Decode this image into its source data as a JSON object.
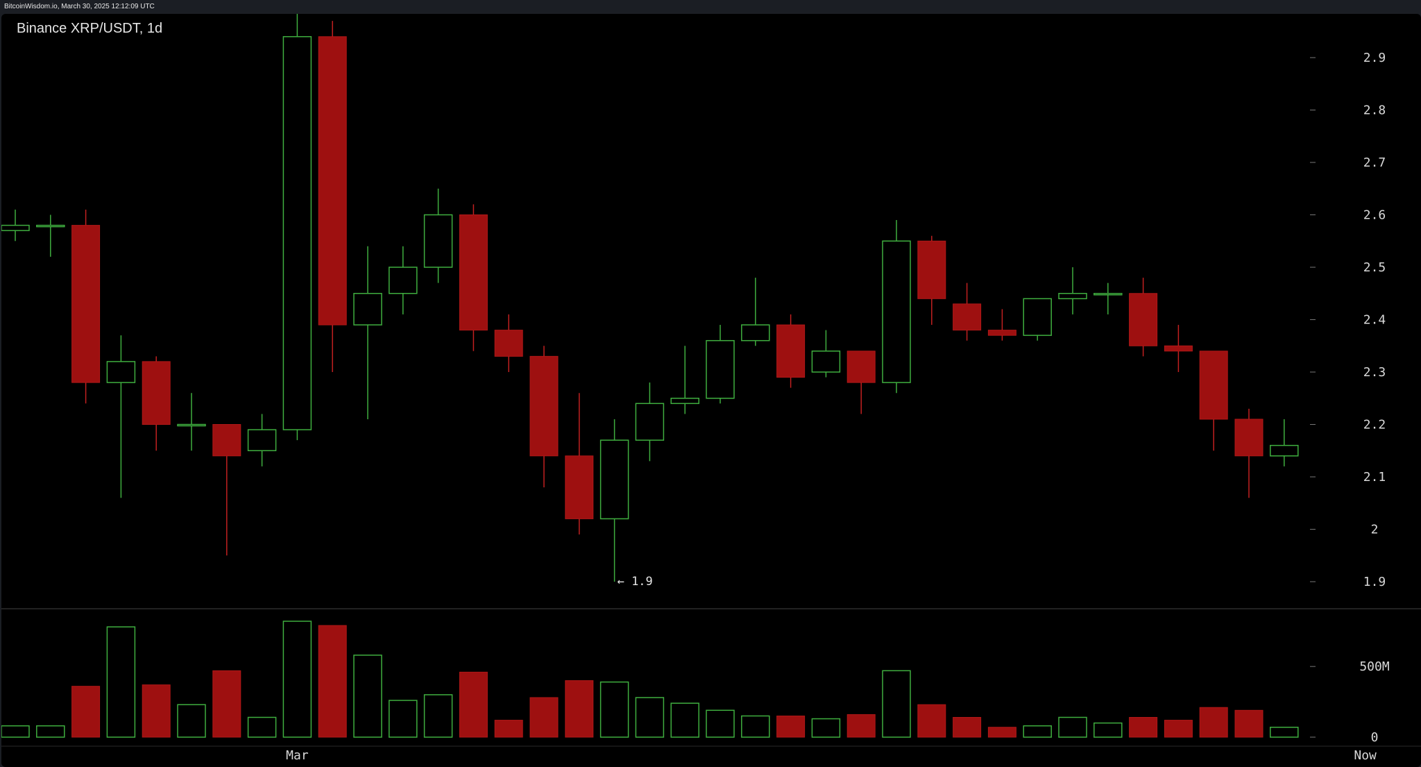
{
  "header": {
    "timestamp": "BitcoinWisdom.io, March 30, 2025 12:12:09 UTC"
  },
  "chart_data": {
    "type": "candlestick",
    "title": "Binance XRP/USDT, 1d",
    "ylim": [
      1.88,
      2.99
    ],
    "yticks": [
      1.9,
      2.0,
      2.1,
      2.2,
      2.3,
      2.4,
      2.5,
      2.6,
      2.7,
      2.8,
      2.9
    ],
    "ytick_labels": [
      "1.9",
      "2",
      "2.1",
      "2.2",
      "2.3",
      "2.4",
      "2.5",
      "2.6",
      "2.7",
      "2.8",
      "2.9"
    ],
    "volume_ticks": [
      0,
      500000000
    ],
    "volume_tick_labels": [
      "0",
      "500M"
    ],
    "volume_max": 820000000,
    "x_labels": [
      {
        "label": "Mar",
        "index": 8
      },
      {
        "label": "Now",
        "index": 38.3
      }
    ],
    "low_annotation": {
      "text": "← 1.9",
      "index": 17,
      "value": 1.9
    },
    "up_color": "#3fae3f",
    "down_color": "#9e1010",
    "candles": [
      {
        "o": 2.57,
        "h": 2.61,
        "l": 2.55,
        "c": 2.58,
        "v": 80000000
      },
      {
        "o": 2.58,
        "h": 2.6,
        "l": 2.52,
        "c": 2.58,
        "v": 80000000
      },
      {
        "o": 2.58,
        "h": 2.61,
        "l": 2.24,
        "c": 2.28,
        "v": 360000000
      },
      {
        "o": 2.28,
        "h": 2.37,
        "l": 2.06,
        "c": 2.32,
        "v": 780000000
      },
      {
        "o": 2.32,
        "h": 2.33,
        "l": 2.15,
        "c": 2.2,
        "v": 370000000
      },
      {
        "o": 2.2,
        "h": 2.26,
        "l": 2.15,
        "c": 2.2,
        "v": 230000000
      },
      {
        "o": 2.2,
        "h": 2.2,
        "l": 1.95,
        "c": 2.14,
        "v": 470000000
      },
      {
        "o": 2.15,
        "h": 2.22,
        "l": 2.12,
        "c": 2.19,
        "v": 140000000
      },
      {
        "o": 2.19,
        "h": 2.99,
        "l": 2.17,
        "c": 2.94,
        "v": 820000000
      },
      {
        "o": 2.94,
        "h": 2.97,
        "l": 2.3,
        "c": 2.39,
        "v": 790000000
      },
      {
        "o": 2.39,
        "h": 2.54,
        "l": 2.21,
        "c": 2.45,
        "v": 580000000
      },
      {
        "o": 2.45,
        "h": 2.54,
        "l": 2.41,
        "c": 2.5,
        "v": 260000000
      },
      {
        "o": 2.5,
        "h": 2.65,
        "l": 2.47,
        "c": 2.6,
        "v": 300000000
      },
      {
        "o": 2.6,
        "h": 2.62,
        "l": 2.34,
        "c": 2.38,
        "v": 460000000
      },
      {
        "o": 2.38,
        "h": 2.41,
        "l": 2.3,
        "c": 2.33,
        "v": 120000000
      },
      {
        "o": 2.33,
        "h": 2.35,
        "l": 2.08,
        "c": 2.14,
        "v": 280000000
      },
      {
        "o": 2.14,
        "h": 2.26,
        "l": 1.99,
        "c": 2.02,
        "v": 400000000
      },
      {
        "o": 2.02,
        "h": 2.21,
        "l": 1.9,
        "c": 2.17,
        "v": 390000000
      },
      {
        "o": 2.17,
        "h": 2.28,
        "l": 2.13,
        "c": 2.24,
        "v": 280000000
      },
      {
        "o": 2.24,
        "h": 2.35,
        "l": 2.22,
        "c": 2.25,
        "v": 240000000
      },
      {
        "o": 2.25,
        "h": 2.39,
        "l": 2.24,
        "c": 2.36,
        "v": 190000000
      },
      {
        "o": 2.36,
        "h": 2.48,
        "l": 2.35,
        "c": 2.39,
        "v": 150000000
      },
      {
        "o": 2.39,
        "h": 2.41,
        "l": 2.27,
        "c": 2.29,
        "v": 150000000
      },
      {
        "o": 2.3,
        "h": 2.38,
        "l": 2.29,
        "c": 2.34,
        "v": 130000000
      },
      {
        "o": 2.34,
        "h": 2.34,
        "l": 2.22,
        "c": 2.28,
        "v": 160000000
      },
      {
        "o": 2.28,
        "h": 2.59,
        "l": 2.26,
        "c": 2.55,
        "v": 470000000
      },
      {
        "o": 2.55,
        "h": 2.56,
        "l": 2.39,
        "c": 2.44,
        "v": 230000000
      },
      {
        "o": 2.43,
        "h": 2.47,
        "l": 2.36,
        "c": 2.38,
        "v": 140000000
      },
      {
        "o": 2.38,
        "h": 2.42,
        "l": 2.36,
        "c": 2.37,
        "v": 70000000
      },
      {
        "o": 2.37,
        "h": 2.44,
        "l": 2.36,
        "c": 2.44,
        "v": 80000000
      },
      {
        "o": 2.44,
        "h": 2.5,
        "l": 2.41,
        "c": 2.45,
        "v": 140000000
      },
      {
        "o": 2.45,
        "h": 2.47,
        "l": 2.41,
        "c": 2.45,
        "v": 100000000
      },
      {
        "o": 2.45,
        "h": 2.48,
        "l": 2.33,
        "c": 2.35,
        "v": 140000000
      },
      {
        "o": 2.35,
        "h": 2.39,
        "l": 2.3,
        "c": 2.34,
        "v": 120000000
      },
      {
        "o": 2.34,
        "h": 2.34,
        "l": 2.15,
        "c": 2.21,
        "v": 210000000
      },
      {
        "o": 2.21,
        "h": 2.23,
        "l": 2.06,
        "c": 2.14,
        "v": 190000000
      },
      {
        "o": 2.14,
        "h": 2.21,
        "l": 2.12,
        "c": 2.16,
        "v": 70000000
      }
    ]
  }
}
